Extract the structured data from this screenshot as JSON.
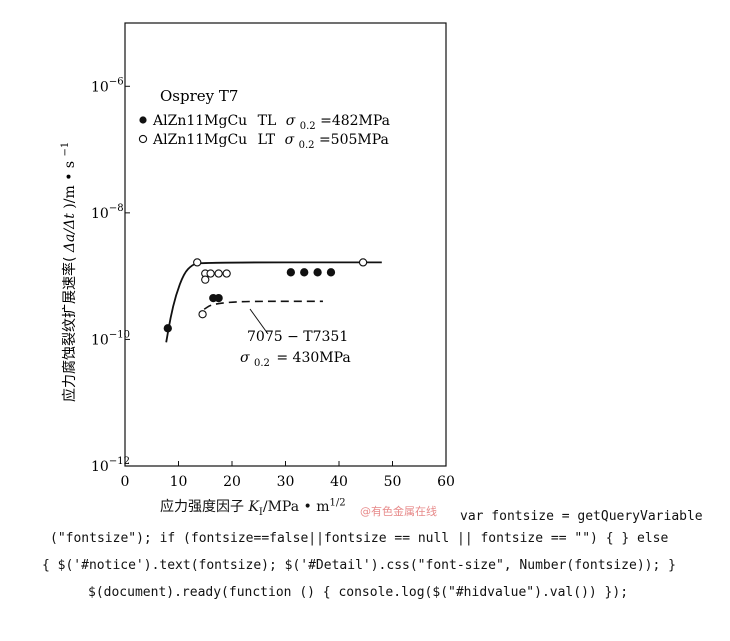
{
  "chart_data": {
    "type": "scatter",
    "y_scale": "log",
    "xlim": [
      0,
      60
    ],
    "ylim": [
      1e-12,
      1e-05
    ],
    "x_ticks": [
      "0",
      "10",
      "20",
      "30",
      "40",
      "50",
      "60"
    ],
    "y_ticks": [
      {
        "base": "10",
        "exp": "−6",
        "value": 1e-06
      },
      {
        "base": "10",
        "exp": "−8",
        "value": 1e-08
      },
      {
        "base": "10",
        "exp": "−10",
        "value": 1e-10
      },
      {
        "base": "10",
        "exp": "−12",
        "value": 1e-12
      }
    ],
    "xlabel": {
      "prefix": "应力强度因子 ",
      "sym": "K",
      "sub": "I",
      "unit": "/MPa • m",
      "sup": "1/2"
    },
    "ylabel": {
      "prefix": "应力腐蚀裂纹扩展速率(",
      "sym": "Δa/Δt",
      "unit": ")/m • s",
      "sup": "−1"
    },
    "legend_title": "Osprey  T7",
    "series": [
      {
        "name": "AlZn11MgCu",
        "orientation": "TL",
        "sigma_value": "=482MPa",
        "marker": "filled",
        "points": [
          {
            "x": 8.0,
            "y": 1.5e-10
          },
          {
            "x": 16.5,
            "y": 4.5e-10
          },
          {
            "x": 17.5,
            "y": 4.5e-10
          },
          {
            "x": 31,
            "y": 1.15e-09
          },
          {
            "x": 33.5,
            "y": 1.15e-09
          },
          {
            "x": 36,
            "y": 1.15e-09
          },
          {
            "x": 38.5,
            "y": 1.15e-09
          }
        ],
        "curve": [
          {
            "x": 7.7,
            "y": 9e-11
          },
          {
            "x": 8.5,
            "y": 2.2e-10
          },
          {
            "x": 9.5,
            "y": 5e-10
          },
          {
            "x": 11,
            "y": 1.1e-09
          },
          {
            "x": 12.5,
            "y": 1.5e-09
          },
          {
            "x": 14,
            "y": 1.65e-09
          },
          {
            "x": 48,
            "y": 1.65e-09
          }
        ]
      },
      {
        "name": "AlZn11MgCu",
        "orientation": "LT",
        "sigma_value": "=505MPa",
        "marker": "open",
        "points": [
          {
            "x": 13.5,
            "y": 1.65e-09
          },
          {
            "x": 44.5,
            "y": 1.65e-09
          },
          {
            "x": 15,
            "y": 1.1e-09
          },
          {
            "x": 16,
            "y": 1.1e-09
          },
          {
            "x": 17.5,
            "y": 1.1e-09
          },
          {
            "x": 19,
            "y": 1.1e-09
          },
          {
            "x": 15,
            "y": 8.8e-10
          },
          {
            "x": 14.5,
            "y": 2.5e-10
          }
        ]
      },
      {
        "name": "7075 − T7351",
        "sigma_value": "= 430MPa",
        "style": "dashed",
        "curve": [
          {
            "x": 14.8,
            "y": 3e-10
          },
          {
            "x": 16,
            "y": 3.5e-10
          },
          {
            "x": 18,
            "y": 3.75e-10
          },
          {
            "x": 21,
            "y": 3.95e-10
          },
          {
            "x": 26,
            "y": 4e-10
          },
          {
            "x": 28,
            "y": 4e-10
          },
          {
            "x": 37,
            "y": 4e-10
          }
        ]
      }
    ],
    "sigma_symbol": "σ",
    "sigma_sub": "0.2",
    "grid": false
  },
  "watermark": "@有色金属在线",
  "code_lines": [
    "var fontsize = getQueryVariable",
    "(\"fontsize\"); if (fontsize==false||fontsize == null || fontsize == \"\") { } else",
    "{ $('#notice').text(fontsize); $('#Detail').css(\"font-size\", Number(fontsize)); }",
    "$(document).ready(function () { console.log($(\"#hidvalue\").val()) });"
  ],
  "colors": {
    "ink": "#111111",
    "watermark": "#e78a8a",
    "background": "#ffffff"
  }
}
